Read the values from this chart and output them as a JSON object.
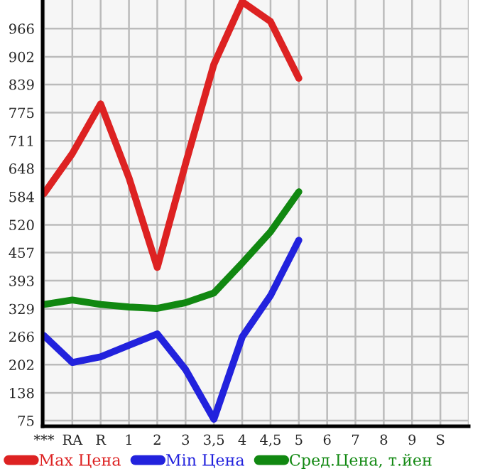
{
  "chart_data": {
    "type": "line",
    "categories": [
      "***",
      "RA",
      "R",
      "1",
      "2",
      "3",
      "3,5",
      "4",
      "4,5",
      "5",
      "6",
      "7",
      "8",
      "9",
      "S"
    ],
    "series": [
      {
        "name": "Max Цена",
        "color": "#dd2222",
        "values": [
          591,
          682,
          795,
          627,
          423,
          659,
          885,
          1027,
          982,
          853,
          null,
          null,
          null,
          null,
          null
        ]
      },
      {
        "name": "Min Цена",
        "color": "#2222dd",
        "values": [
          268,
          207,
          220,
          246,
          272,
          191,
          78,
          265,
          359,
          485,
          null,
          null,
          null,
          null,
          null
        ]
      },
      {
        "name": "Сред.Цена, т.йен",
        "color": "#118811",
        "values": [
          339,
          349,
          339,
          333,
          330,
          343,
          365,
          433,
          504,
          595,
          null,
          null,
          null,
          null,
          null
        ]
      }
    ],
    "ylim": [
      62,
      1031
    ],
    "yticks": [
      75,
      138,
      202,
      266,
      329,
      393,
      457,
      520,
      584,
      648,
      711,
      775,
      839,
      902,
      966
    ],
    "grid": true,
    "legend": "bottom",
    "marker": "none",
    "line_style": "solid"
  }
}
